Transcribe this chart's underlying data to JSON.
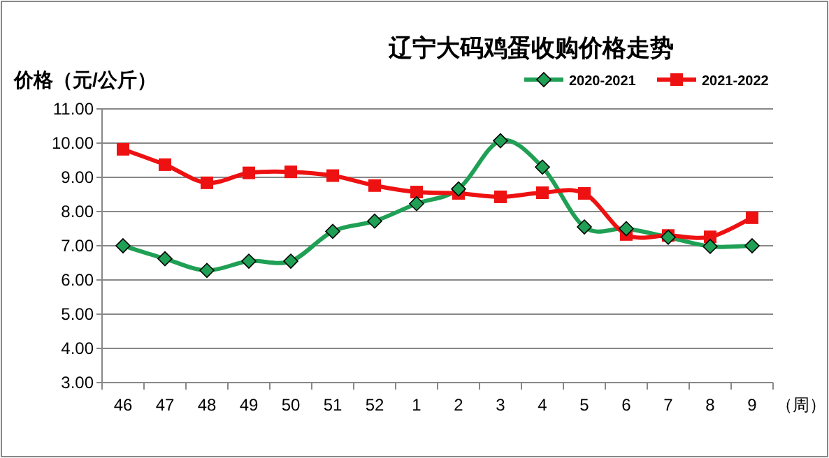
{
  "chart_data": {
    "type": "line",
    "title": "辽宁大码鸡蛋收购价格走势",
    "ylabel": "价格（元/公斤）",
    "xlabel": "（周）",
    "categories": [
      "46",
      "47",
      "48",
      "49",
      "50",
      "51",
      "52",
      "1",
      "2",
      "3",
      "4",
      "5",
      "6",
      "7",
      "8",
      "9"
    ],
    "series": [
      {
        "name": "2020-2021",
        "color": "#1fa055",
        "marker": "diamond",
        "values": [
          7.0,
          6.62,
          6.28,
          6.55,
          6.55,
          7.42,
          7.72,
          8.23,
          8.66,
          10.07,
          9.3,
          7.55,
          7.5,
          7.25,
          6.98,
          7.0
        ]
      },
      {
        "name": "2021-2022",
        "color": "#ee1111",
        "marker": "square",
        "values": [
          9.82,
          9.37,
          8.84,
          9.13,
          9.16,
          9.05,
          8.76,
          8.57,
          8.53,
          8.43,
          8.55,
          8.53,
          7.33,
          7.3,
          7.26,
          7.82
        ]
      }
    ],
    "ylim": [
      3,
      11
    ],
    "yticks": [
      {
        "value": 3,
        "label": "3.00"
      },
      {
        "value": 4,
        "label": "4.00"
      },
      {
        "value": 5,
        "label": "5.00"
      },
      {
        "value": 6,
        "label": "6.00"
      },
      {
        "value": 7,
        "label": "7.00"
      },
      {
        "value": 8,
        "label": "8.00"
      },
      {
        "value": 9,
        "label": "9.00"
      },
      {
        "value": 10,
        "label": "10.00"
      },
      {
        "value": 11,
        "label": "11.00"
      }
    ],
    "grid": "y",
    "legend": "top right"
  }
}
